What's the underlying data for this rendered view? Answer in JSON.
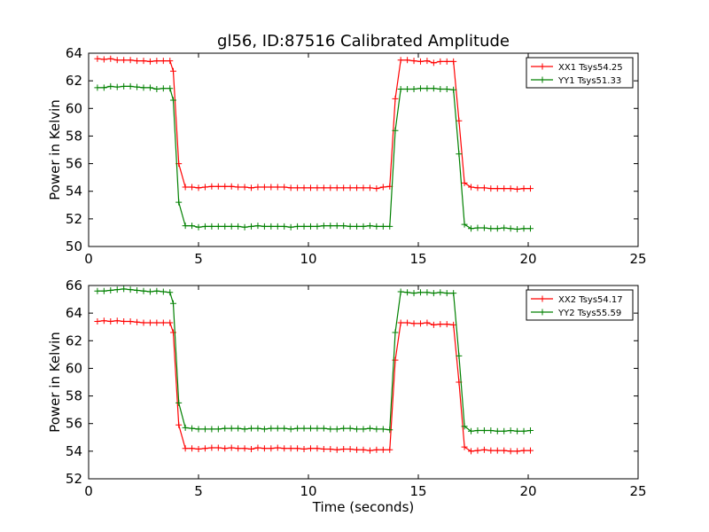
{
  "chart_data": [
    {
      "type": "line",
      "title": "gl56, ID:87516 Calibrated Amplitude",
      "xlabel": "",
      "ylabel": "Power in Kelvin",
      "xlim": [
        0,
        25
      ],
      "ylim": [
        50,
        64
      ],
      "xticks": [
        "0",
        "5",
        "10",
        "15",
        "20",
        "25"
      ],
      "yticks": [
        "50",
        "52",
        "54",
        "56",
        "58",
        "60",
        "62",
        "64"
      ],
      "legend_position": "top-right",
      "grid": false,
      "x": [
        0.4,
        0.7,
        1.0,
        1.3,
        1.6,
        1.9,
        2.2,
        2.5,
        2.8,
        3.1,
        3.4,
        3.7,
        3.85,
        4.1,
        4.4,
        4.7,
        5.0,
        5.3,
        5.6,
        5.9,
        6.2,
        6.5,
        6.8,
        7.1,
        7.4,
        7.7,
        8.0,
        8.3,
        8.6,
        8.9,
        9.2,
        9.5,
        9.8,
        10.1,
        10.4,
        10.7,
        11.0,
        11.3,
        11.6,
        11.9,
        12.2,
        12.5,
        12.8,
        13.1,
        13.4,
        13.7,
        13.95,
        14.2,
        14.5,
        14.8,
        15.1,
        15.4,
        15.7,
        16.0,
        16.3,
        16.6,
        16.85,
        17.1,
        17.4,
        17.7,
        18.0,
        18.3,
        18.6,
        18.9,
        19.2,
        19.5,
        19.8,
        20.1
      ],
      "series": [
        {
          "name": "XX1 Tsys54.25",
          "color": "#ff0000",
          "values": [
            63.6,
            63.55,
            63.6,
            63.5,
            63.5,
            63.5,
            63.45,
            63.45,
            63.4,
            63.45,
            63.45,
            63.45,
            62.7,
            56.0,
            54.3,
            54.3,
            54.25,
            54.3,
            54.35,
            54.35,
            54.35,
            54.35,
            54.3,
            54.3,
            54.25,
            54.3,
            54.3,
            54.3,
            54.3,
            54.3,
            54.25,
            54.25,
            54.25,
            54.25,
            54.25,
            54.25,
            54.25,
            54.25,
            54.25,
            54.25,
            54.25,
            54.25,
            54.25,
            54.2,
            54.3,
            54.35,
            60.7,
            63.5,
            63.5,
            63.45,
            63.4,
            63.45,
            63.3,
            63.4,
            63.4,
            63.4,
            59.1,
            54.6,
            54.3,
            54.25,
            54.25,
            54.2,
            54.2,
            54.2,
            54.2,
            54.15,
            54.2,
            54.2
          ]
        },
        {
          "name": "YY1 Tsys51.33",
          "color": "#008000",
          "values": [
            61.5,
            61.5,
            61.6,
            61.55,
            61.6,
            61.6,
            61.55,
            61.5,
            61.5,
            61.4,
            61.45,
            61.45,
            60.6,
            53.2,
            51.5,
            51.5,
            51.4,
            51.45,
            51.45,
            51.45,
            51.45,
            51.45,
            51.45,
            51.4,
            51.45,
            51.5,
            51.45,
            51.45,
            51.45,
            51.45,
            51.4,
            51.45,
            51.45,
            51.45,
            51.45,
            51.5,
            51.5,
            51.5,
            51.5,
            51.45,
            51.45,
            51.45,
            51.5,
            51.45,
            51.45,
            51.45,
            58.4,
            61.4,
            61.4,
            61.4,
            61.45,
            61.45,
            61.45,
            61.4,
            61.4,
            61.35,
            56.7,
            51.6,
            51.3,
            51.35,
            51.35,
            51.3,
            51.3,
            51.35,
            51.3,
            51.25,
            51.3,
            51.3
          ]
        }
      ]
    },
    {
      "type": "line",
      "title": "",
      "xlabel": "Time (seconds)",
      "ylabel": "Power in Kelvin",
      "xlim": [
        0,
        25
      ],
      "ylim": [
        52,
        66
      ],
      "xticks": [
        "0",
        "5",
        "10",
        "15",
        "20",
        "25"
      ],
      "yticks": [
        "52",
        "54",
        "56",
        "58",
        "60",
        "62",
        "64",
        "66"
      ],
      "legend_position": "top-right",
      "grid": false,
      "x": [
        0.4,
        0.7,
        1.0,
        1.3,
        1.6,
        1.9,
        2.2,
        2.5,
        2.8,
        3.1,
        3.4,
        3.7,
        3.85,
        4.1,
        4.4,
        4.7,
        5.0,
        5.3,
        5.6,
        5.9,
        6.2,
        6.5,
        6.8,
        7.1,
        7.4,
        7.7,
        8.0,
        8.3,
        8.6,
        8.9,
        9.2,
        9.5,
        9.8,
        10.1,
        10.4,
        10.7,
        11.0,
        11.3,
        11.6,
        11.9,
        12.2,
        12.5,
        12.8,
        13.1,
        13.4,
        13.7,
        13.95,
        14.2,
        14.5,
        14.8,
        15.1,
        15.4,
        15.7,
        16.0,
        16.3,
        16.6,
        16.85,
        17.1,
        17.4,
        17.7,
        18.0,
        18.3,
        18.6,
        18.9,
        19.2,
        19.5,
        19.8,
        20.1
      ],
      "series": [
        {
          "name": "XX2 Tsys54.17",
          "color": "#ff0000",
          "values": [
            63.4,
            63.45,
            63.4,
            63.45,
            63.4,
            63.4,
            63.35,
            63.3,
            63.3,
            63.3,
            63.3,
            63.3,
            62.6,
            55.9,
            54.2,
            54.2,
            54.15,
            54.2,
            54.25,
            54.25,
            54.2,
            54.25,
            54.2,
            54.2,
            54.15,
            54.25,
            54.2,
            54.2,
            54.25,
            54.2,
            54.2,
            54.2,
            54.15,
            54.2,
            54.2,
            54.15,
            54.15,
            54.1,
            54.15,
            54.15,
            54.1,
            54.1,
            54.05,
            54.1,
            54.1,
            54.1,
            60.6,
            63.3,
            63.3,
            63.25,
            63.25,
            63.3,
            63.15,
            63.2,
            63.2,
            63.15,
            59.0,
            54.3,
            54.0,
            54.05,
            54.1,
            54.05,
            54.05,
            54.05,
            54.0,
            54.0,
            54.05,
            54.05
          ]
        },
        {
          "name": "YY2 Tsys55.59",
          "color": "#008000",
          "values": [
            65.6,
            65.6,
            65.65,
            65.7,
            65.75,
            65.7,
            65.65,
            65.6,
            65.55,
            65.6,
            65.55,
            65.5,
            64.7,
            57.5,
            55.7,
            55.65,
            55.6,
            55.6,
            55.6,
            55.6,
            55.65,
            55.65,
            55.65,
            55.6,
            55.65,
            55.65,
            55.6,
            55.65,
            55.65,
            55.65,
            55.6,
            55.65,
            55.65,
            55.65,
            55.65,
            55.65,
            55.6,
            55.6,
            55.65,
            55.65,
            55.6,
            55.6,
            55.65,
            55.6,
            55.6,
            55.55,
            62.6,
            65.55,
            65.5,
            65.45,
            65.5,
            65.5,
            65.45,
            65.5,
            65.45,
            65.45,
            60.9,
            55.8,
            55.45,
            55.5,
            55.5,
            55.5,
            55.45,
            55.45,
            55.5,
            55.45,
            55.45,
            55.5
          ]
        }
      ]
    }
  ]
}
